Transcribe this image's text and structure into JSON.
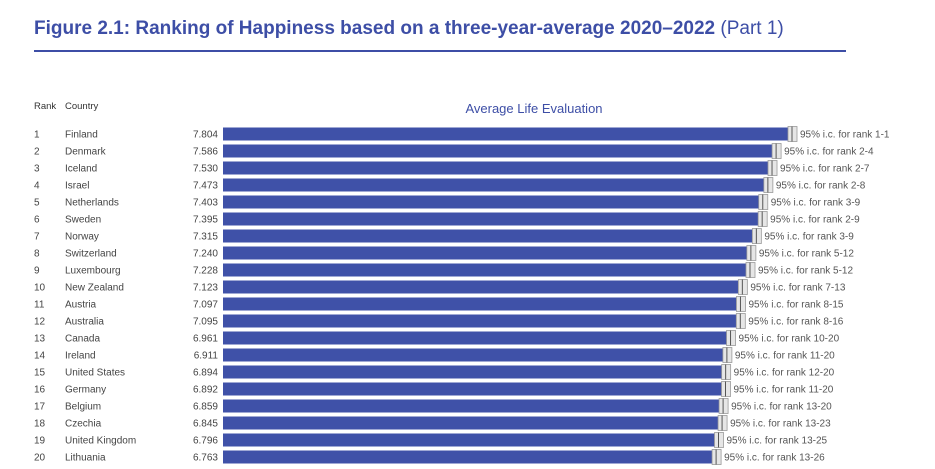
{
  "header": {
    "title_bold": "Figure 2.1: Ranking of Happiness based on a three-year-average 2020–2022",
    "title_part": "(Part 1)",
    "rank_col": "Rank",
    "country_col": "Country"
  },
  "colors": {
    "bar": "#3f51a8",
    "title": "#3d4ea6",
    "ci_box": "#c8c8c8"
  },
  "chart_data": {
    "type": "bar",
    "orientation": "horizontal",
    "title": "Average Life Evaluation",
    "rows": [
      {
        "rank": "1",
        "country": "Finland",
        "value": 7.804,
        "value_label": "7.804",
        "ci": "95% i.c. for rank 1-1"
      },
      {
        "rank": "2",
        "country": "Denmark",
        "value": 7.586,
        "value_label": "7.586",
        "ci": "95% i.c. for rank 2-4"
      },
      {
        "rank": "3",
        "country": "Iceland",
        "value": 7.53,
        "value_label": "7.530",
        "ci": "95% i.c. for rank 2-7"
      },
      {
        "rank": "4",
        "country": "Israel",
        "value": 7.473,
        "value_label": "7.473",
        "ci": "95% i.c. for rank 2-8"
      },
      {
        "rank": "5",
        "country": "Netherlands",
        "value": 7.403,
        "value_label": "7.403",
        "ci": "95% i.c. for rank 3-9"
      },
      {
        "rank": "6",
        "country": "Sweden",
        "value": 7.395,
        "value_label": "7.395",
        "ci": "95% i.c. for rank 2-9"
      },
      {
        "rank": "7",
        "country": "Norway",
        "value": 7.315,
        "value_label": "7.315",
        "ci": "95% i.c. for rank 3-9"
      },
      {
        "rank": "8",
        "country": "Switzerland",
        "value": 7.24,
        "value_label": "7.240",
        "ci": "95% i.c. for rank 5-12"
      },
      {
        "rank": "9",
        "country": "Luxembourg",
        "value": 7.228,
        "value_label": "7.228",
        "ci": "95% i.c. for rank 5-12"
      },
      {
        "rank": "10",
        "country": "New Zealand",
        "value": 7.123,
        "value_label": "7.123",
        "ci": "95% i.c. for rank 7-13"
      },
      {
        "rank": "11",
        "country": "Austria",
        "value": 7.097,
        "value_label": "7.097",
        "ci": "95% i.c. for rank 8-15"
      },
      {
        "rank": "12",
        "country": "Australia",
        "value": 7.095,
        "value_label": "7.095",
        "ci": "95% i.c. for rank 8-16"
      },
      {
        "rank": "13",
        "country": "Canada",
        "value": 6.961,
        "value_label": "6.961",
        "ci": "95% i.c. for rank 10-20"
      },
      {
        "rank": "14",
        "country": "Ireland",
        "value": 6.911,
        "value_label": "6.911",
        "ci": "95% i.c. for rank 11-20"
      },
      {
        "rank": "15",
        "country": "United States",
        "value": 6.894,
        "value_label": "6.894",
        "ci": "95% i.c. for rank 12-20"
      },
      {
        "rank": "16",
        "country": "Germany",
        "value": 6.892,
        "value_label": "6.892",
        "ci": "95% i.c. for rank 11-20"
      },
      {
        "rank": "17",
        "country": "Belgium",
        "value": 6.859,
        "value_label": "6.859",
        "ci": "95% i.c. for rank 13-20"
      },
      {
        "rank": "18",
        "country": "Czechia",
        "value": 6.845,
        "value_label": "6.845",
        "ci": "95% i.c. for rank 13-23"
      },
      {
        "rank": "19",
        "country": "United Kingdom",
        "value": 6.796,
        "value_label": "6.796",
        "ci": "95% i.c. for rank 13-25"
      },
      {
        "rank": "20",
        "country": "Lithuania",
        "value": 6.763,
        "value_label": "6.763",
        "ci": "95% i.c. for rank 13-26"
      }
    ]
  }
}
